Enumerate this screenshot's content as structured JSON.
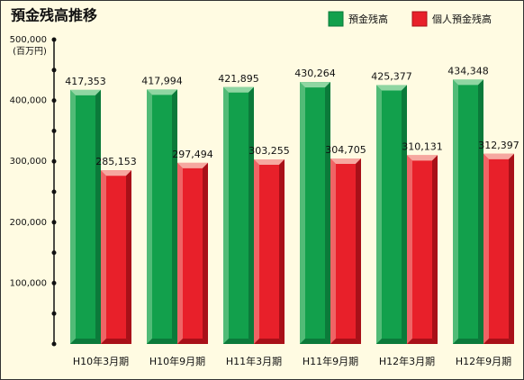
{
  "chart_data": {
    "type": "bar",
    "title": "預金残高推移",
    "y_unit": "(百万円)",
    "categories": [
      "H10年3月期",
      "H10年9月期",
      "H11年3月期",
      "H11年9月期",
      "H12年3月期",
      "H12年9月期"
    ],
    "series": [
      {
        "name": "預金残高",
        "color": "#12a04c",
        "values": [
          417353,
          417994,
          421895,
          430264,
          425377,
          434348
        ],
        "value_labels": [
          "417,353",
          "417,994",
          "421,895",
          "430,264",
          "425,377",
          "434,348"
        ]
      },
      {
        "name": "個人預金残高",
        "color": "#e8202a",
        "values": [
          285153,
          297494,
          303255,
          304705,
          310131,
          312397
        ],
        "value_labels": [
          "285,153",
          "297,494",
          "303,255",
          "304,705",
          "310,131",
          "312,397"
        ]
      }
    ],
    "ylim": [
      0,
      500000
    ],
    "yticks": [
      {
        "value": 100000,
        "label": "100,000"
      },
      {
        "value": 200000,
        "label": "200,000"
      },
      {
        "value": 300000,
        "label": "300,000"
      },
      {
        "value": 400000,
        "label": "400,000"
      },
      {
        "value": 500000,
        "label": "500,000"
      }
    ],
    "minor_yticks": [
      0,
      50000,
      150000,
      250000,
      350000,
      450000
    ],
    "legend": "top-right"
  }
}
